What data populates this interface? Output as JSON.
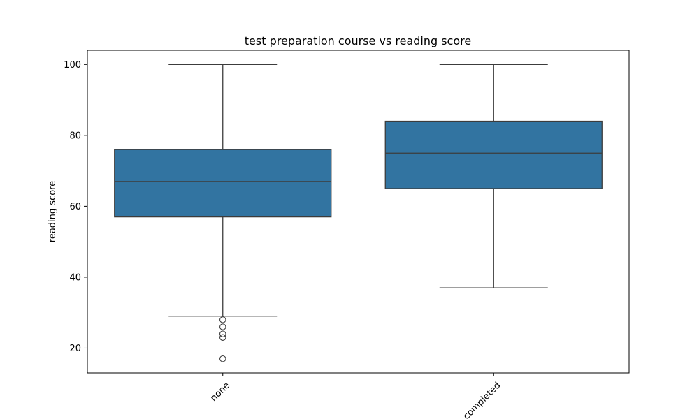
{
  "chart_data": {
    "type": "box",
    "title": "test preparation course vs reading score",
    "xlabel": "",
    "ylabel": "reading score",
    "categories": [
      "none",
      "completed"
    ],
    "ylim": [
      13,
      104
    ],
    "yticks": [
      20,
      40,
      60,
      80,
      100
    ],
    "grid": false,
    "boxes": [
      {
        "category": "none",
        "whisker_low": 29,
        "q1": 57,
        "median": 67,
        "q3": 76,
        "whisker_high": 100,
        "outliers": [
          28,
          26,
          24,
          23,
          17
        ]
      },
      {
        "category": "completed",
        "whisker_low": 37,
        "q1": 65,
        "median": 75,
        "q3": 84,
        "whisker_high": 100,
        "outliers": []
      }
    ],
    "box_color": "#3274a1",
    "line_color": "#3c3c3c"
  }
}
